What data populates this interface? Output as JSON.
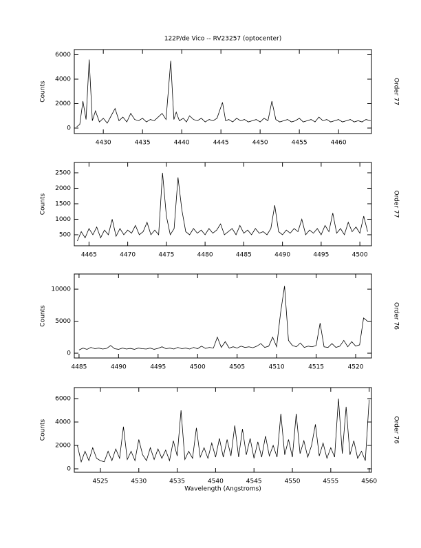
{
  "chart_data": [
    {
      "type": "line",
      "title": "122P/de Vico -- RV23257 (optocenter)",
      "y_label": "Counts",
      "side_label": "Order 77",
      "color": "#000000",
      "xlim": [
        4426.3,
        4464.2
      ],
      "ylim": [
        -450,
        6420
      ],
      "xticks": [
        4430,
        4435,
        4440,
        4445,
        4450,
        4455,
        4460
      ],
      "yticks": [
        0,
        2000,
        4000,
        6000
      ],
      "x": [
        4426.6,
        4427.0,
        4427.4,
        4427.8,
        4428.2,
        4428.6,
        4429.0,
        4429.5,
        4430.0,
        4430.5,
        4431.0,
        4431.5,
        4432.0,
        4432.5,
        4433.0,
        4433.5,
        4434.0,
        4434.5,
        4435.0,
        4435.5,
        4436.0,
        4436.5,
        4437.0,
        4437.5,
        4438.0,
        4438.6,
        4439.0,
        4439.3,
        4439.7,
        4440.2,
        4440.6,
        4441.0,
        4441.5,
        4442.0,
        4442.5,
        4443.0,
        4443.5,
        4444.0,
        4444.5,
        4445.2,
        4445.6,
        4446.0,
        4446.5,
        4447.0,
        4447.5,
        4448.0,
        4448.5,
        4449.0,
        4449.5,
        4450.0,
        4450.5,
        4451.0,
        4451.5,
        4452.0,
        4452.5,
        4453.0,
        4453.5,
        4454.0,
        4454.5,
        4455.0,
        4455.5,
        4456.0,
        4456.5,
        4457.0,
        4457.5,
        4458.0,
        4458.5,
        4459.0,
        4459.5,
        4460.0,
        4460.5,
        4461.0,
        4461.5,
        4462.0,
        4462.5,
        4463.0,
        4463.5,
        4464.1
      ],
      "values": [
        100,
        300,
        2200,
        700,
        5600,
        600,
        1400,
        500,
        800,
        400,
        1000,
        1600,
        600,
        900,
        500,
        1200,
        700,
        600,
        800,
        500,
        700,
        600,
        900,
        1200,
        700,
        5500,
        700,
        1300,
        600,
        800,
        500,
        1000,
        700,
        600,
        800,
        500,
        700,
        600,
        800,
        2100,
        600,
        700,
        500,
        800,
        600,
        700,
        500,
        600,
        700,
        500,
        800,
        600,
        2200,
        700,
        500,
        600,
        700,
        500,
        600,
        800,
        500,
        600,
        700,
        500,
        900,
        600,
        700,
        500,
        600,
        700,
        500,
        600,
        700,
        500,
        600,
        500,
        700,
        600
      ]
    },
    {
      "type": "line",
      "y_label": "Counts",
      "side_label": "Order 77",
      "color": "#000000",
      "xlim": [
        4463.1,
        4501.5
      ],
      "ylim": [
        144,
        2833
      ],
      "xticks": [
        4465,
        4470,
        4475,
        4480,
        4485,
        4490,
        4495,
        4500
      ],
      "yticks": [
        500,
        1000,
        1500,
        2000,
        2500
      ],
      "x": [
        4463.5,
        4464.0,
        4464.5,
        4465.0,
        4465.5,
        4466.0,
        4466.5,
        4467.0,
        4467.5,
        4468.0,
        4468.5,
        4469.0,
        4469.5,
        4470.0,
        4470.5,
        4471.0,
        4471.5,
        4472.0,
        4472.5,
        4473.0,
        4473.5,
        4474.0,
        4474.5,
        4475.0,
        4475.5,
        4476.0,
        4476.5,
        4477.0,
        4477.5,
        4478.0,
        4478.5,
        4479.0,
        4479.5,
        4480.0,
        4480.5,
        4481.0,
        4481.5,
        4482.0,
        4482.5,
        4483.0,
        4483.5,
        4484.0,
        4484.5,
        4485.0,
        4485.5,
        4486.0,
        4486.5,
        4487.0,
        4487.5,
        4488.0,
        4488.5,
        4489.0,
        4489.5,
        4490.0,
        4490.5,
        4491.0,
        4491.5,
        4492.0,
        4492.5,
        4493.0,
        4493.5,
        4494.0,
        4494.5,
        4495.0,
        4495.5,
        4496.0,
        4496.5,
        4497.0,
        4497.5,
        4498.0,
        4498.5,
        4499.0,
        4499.5,
        4500.0,
        4500.5,
        4501.0
      ],
      "values": [
        300,
        600,
        400,
        700,
        500,
        750,
        400,
        650,
        500,
        1000,
        450,
        700,
        500,
        650,
        550,
        800,
        500,
        600,
        900,
        500,
        650,
        500,
        2500,
        1100,
        500,
        700,
        2350,
        1300,
        600,
        500,
        700,
        550,
        650,
        500,
        700,
        550,
        650,
        850,
        500,
        600,
        700,
        500,
        800,
        550,
        650,
        500,
        700,
        550,
        600,
        500,
        700,
        1450,
        600,
        500,
        650,
        550,
        700,
        600,
        1000,
        500,
        650,
        550,
        700,
        500,
        800,
        600,
        1200,
        550,
        700,
        500,
        900,
        600,
        750,
        550,
        1100,
        600
      ]
    },
    {
      "type": "line",
      "y_label": "Counts",
      "side_label": "Order 76",
      "color": "#000000",
      "xlim": [
        4484.4,
        4522.0
      ],
      "ylim": [
        -750,
        12370
      ],
      "xticks": [
        4485,
        4490,
        4495,
        4500,
        4505,
        4510,
        4515,
        4520
      ],
      "yticks": [
        0,
        5000,
        10000
      ],
      "x": [
        4485.0,
        4485.5,
        4486.0,
        4486.5,
        4487.0,
        4487.5,
        4488.0,
        4488.5,
        4489.0,
        4489.5,
        4490.0,
        4490.5,
        4491.0,
        4491.5,
        4492.0,
        4492.5,
        4493.0,
        4493.5,
        4494.0,
        4494.5,
        4495.0,
        4495.5,
        4496.0,
        4496.5,
        4497.0,
        4497.5,
        4498.0,
        4498.5,
        4499.0,
        4499.5,
        4500.0,
        4500.5,
        4501.0,
        4501.5,
        4502.0,
        4502.5,
        4503.0,
        4503.5,
        4504.0,
        4504.5,
        4505.0,
        4505.5,
        4506.0,
        4506.5,
        4507.0,
        4507.5,
        4508.0,
        4508.5,
        4509.0,
        4509.5,
        4510.0,
        4510.5,
        4511.0,
        4511.5,
        4512.0,
        4512.5,
        4513.0,
        4513.5,
        4514.0,
        4514.5,
        4515.0,
        4515.5,
        4516.0,
        4516.5,
        4517.0,
        4517.5,
        4518.0,
        4518.5,
        4519.0,
        4519.5,
        4520.0,
        4520.5,
        4521.0,
        4521.5
      ],
      "values": [
        500,
        800,
        600,
        900,
        700,
        800,
        650,
        750,
        1200,
        700,
        600,
        800,
        650,
        750,
        600,
        800,
        700,
        650,
        800,
        600,
        750,
        1000,
        700,
        800,
        650,
        900,
        700,
        800,
        650,
        900,
        700,
        1100,
        750,
        900,
        800,
        2500,
        900,
        1800,
        800,
        1000,
        800,
        1100,
        900,
        1000,
        850,
        1100,
        1500,
        900,
        1100,
        2500,
        1000,
        6300,
        10500,
        2000,
        1200,
        1000,
        1600,
        900,
        1100,
        1000,
        1200,
        4700,
        1000,
        900,
        1500,
        900,
        1100,
        2000,
        1000,
        1800,
        1100,
        1300,
        5500,
        5000
      ]
    },
    {
      "type": "line",
      "y_label": "Counts",
      "side_label": "Order 76",
      "x_label": "Wavelength (Angstroms)",
      "color": "#000000",
      "xlim": [
        4521.6,
        4560.3
      ],
      "ylim": [
        -294,
        6940
      ],
      "xticks": [
        4525,
        4530,
        4535,
        4540,
        4545,
        4550,
        4555,
        4560
      ],
      "yticks": [
        0,
        2000,
        4000,
        6000
      ],
      "x": [
        4522.0,
        4522.5,
        4523.0,
        4523.5,
        4524.0,
        4524.5,
        4525.0,
        4525.5,
        4526.0,
        4526.5,
        4527.0,
        4527.5,
        4528.0,
        4528.5,
        4529.0,
        4529.5,
        4530.0,
        4530.5,
        4531.0,
        4531.5,
        4532.0,
        4532.5,
        4533.0,
        4533.5,
        4534.0,
        4534.5,
        4535.0,
        4535.5,
        4536.0,
        4536.5,
        4537.0,
        4537.5,
        4538.0,
        4538.5,
        4539.0,
        4539.5,
        4540.0,
        4540.5,
        4541.0,
        4541.5,
        4542.0,
        4542.5,
        4543.0,
        4543.5,
        4544.0,
        4544.5,
        4545.0,
        4545.5,
        4546.0,
        4546.5,
        4547.0,
        4547.5,
        4548.0,
        4548.5,
        4549.0,
        4549.5,
        4550.0,
        4550.5,
        4551.0,
        4551.5,
        4552.0,
        4552.5,
        4553.0,
        4553.5,
        4554.0,
        4554.5,
        4555.0,
        4555.5,
        4556.0,
        4556.5,
        4557.0,
        4557.5,
        4558.0,
        4558.5,
        4559.0,
        4559.5,
        4560.0
      ],
      "values": [
        2000,
        600,
        1500,
        700,
        1800,
        900,
        700,
        600,
        1500,
        700,
        1700,
        900,
        3600,
        800,
        1500,
        700,
        2500,
        1200,
        700,
        1800,
        800,
        1700,
        900,
        1600,
        700,
        2400,
        1100,
        5000,
        800,
        1500,
        900,
        3500,
        1000,
        1800,
        900,
        2200,
        1000,
        2600,
        1000,
        2500,
        1100,
        3700,
        1000,
        3400,
        1200,
        2600,
        900,
        2300,
        1000,
        2800,
        1100,
        2000,
        1000,
        4700,
        1200,
        2500,
        1000,
        4700,
        1300,
        2400,
        1000,
        2000,
        3800,
        1100,
        2200,
        900,
        1800,
        1000,
        6000,
        1300,
        5300,
        1200,
        2400,
        900,
        1500,
        700,
        5900
      ]
    }
  ]
}
